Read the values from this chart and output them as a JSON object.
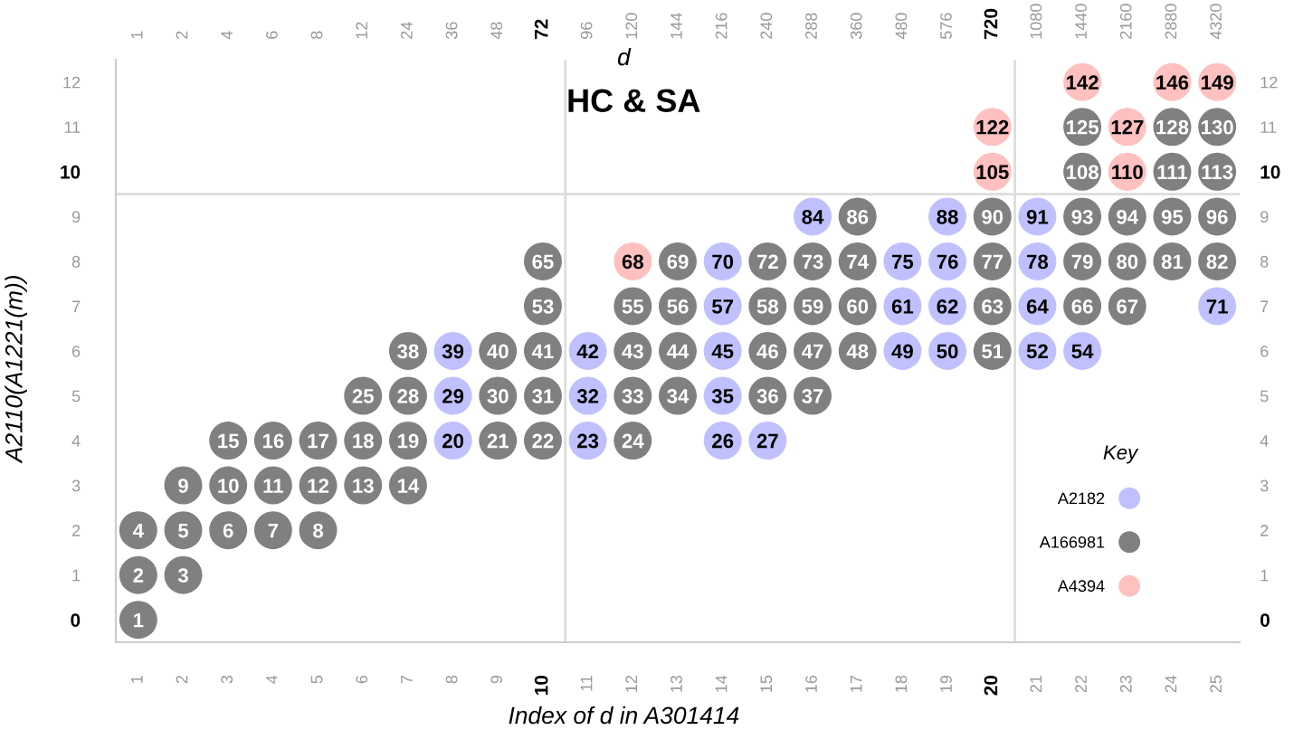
{
  "chart_data": {
    "type": "scatter",
    "title": "HC & SA",
    "xlabel": "Index of d in A301414",
    "x2label": "d",
    "ylabel": "A2110(A1221(m))",
    "legend_title": "Key",
    "legend": "bottom right",
    "marker": "circle",
    "xlim": [
      0.5,
      25.5
    ],
    "xticks": [
      1,
      2,
      3,
      4,
      5,
      6,
      7,
      8,
      9,
      10,
      11,
      12,
      13,
      14,
      15,
      16,
      17,
      18,
      19,
      20,
      21,
      22,
      23,
      24,
      25
    ],
    "ylim": [
      -0.5,
      12.5
    ],
    "yticks": [
      0,
      1,
      2,
      3,
      4,
      5,
      6,
      7,
      8,
      9,
      10,
      11,
      12
    ],
    "y2lim": [
      -0.5,
      12.5
    ],
    "y2ticks": [
      0,
      1,
      2,
      3,
      4,
      5,
      6,
      7,
      8,
      9,
      10,
      11,
      12
    ],
    "ref_lines": [
      {
        "axis": "x",
        "value": 10.5,
        "color": "#dddddd"
      },
      {
        "axis": "x",
        "value": 20.5,
        "color": "#dddddd"
      },
      {
        "axis": "y",
        "value": 9.5,
        "color": "#dddddd"
      }
    ],
    "series": [
      {
        "name": "A2182",
        "color": "#c0c0ff",
        "x": [
          8,
          8,
          8,
          11,
          11,
          11,
          14,
          14,
          14,
          14,
          14,
          15,
          16,
          18,
          18,
          18,
          19,
          19,
          19,
          19,
          21,
          21,
          21,
          21,
          22,
          25
        ],
        "values": [
          4,
          5,
          6,
          4,
          5,
          6,
          4,
          5,
          6,
          7,
          8,
          4,
          9,
          6,
          7,
          8,
          6,
          7,
          8,
          9,
          6,
          7,
          8,
          9,
          6,
          7
        ]
      },
      {
        "name": "A166981",
        "color": "#808080",
        "x": [
          1,
          1,
          2,
          1,
          2,
          3,
          4,
          5,
          2,
          3,
          4,
          5,
          6,
          7,
          3,
          4,
          5,
          6,
          7,
          9,
          10,
          12,
          6,
          7,
          9,
          10,
          12,
          13,
          15,
          16,
          7,
          9,
          10,
          12,
          13,
          15,
          16,
          17,
          20,
          10,
          12,
          13,
          15,
          16,
          17,
          20,
          22,
          23,
          10,
          13,
          15,
          16,
          17,
          20,
          22,
          23,
          24,
          25,
          17,
          20,
          22,
          23,
          24,
          25,
          22,
          24,
          25,
          22,
          24,
          25
        ],
        "values": [
          0,
          1,
          1,
          2,
          2,
          2,
          2,
          2,
          3,
          3,
          3,
          3,
          3,
          3,
          4,
          4,
          4,
          4,
          4,
          4,
          4,
          4,
          5,
          5,
          5,
          5,
          5,
          5,
          5,
          5,
          6,
          6,
          6,
          6,
          6,
          6,
          6,
          6,
          6,
          7,
          7,
          7,
          7,
          7,
          7,
          7,
          7,
          7,
          8,
          8,
          8,
          8,
          8,
          8,
          8,
          8,
          8,
          8,
          9,
          9,
          9,
          9,
          9,
          9,
          10,
          10,
          10,
          11,
          11,
          11
        ]
      },
      {
        "name": "A4394",
        "color": "#ffc0c0",
        "x": [
          12,
          20,
          20,
          23,
          23,
          22,
          24,
          25
        ],
        "values": [
          8,
          10,
          11,
          10,
          11,
          12,
          12,
          12
        ]
      }
    ],
    "annotations": [
      "1",
      "2",
      "4",
      "6",
      "8",
      "12",
      "24",
      "36",
      "48",
      "72",
      "96",
      "120",
      "144",
      "216",
      "240",
      "288",
      "360",
      "480",
      "576",
      "720",
      "1080",
      "1440",
      "2160",
      "2880",
      "4320",
      {
        "text": "20",
        "x": 8,
        "y": 4
      },
      {
        "text": "29",
        "x": 8,
        "y": 5
      },
      {
        "text": "39",
        "x": 8,
        "y": 6
      },
      {
        "text": "23",
        "x": 11,
        "y": 4
      },
      {
        "text": "32",
        "x": 11,
        "y": 5
      },
      {
        "text": "42",
        "x": 11,
        "y": 6
      },
      {
        "text": "26",
        "x": 14,
        "y": 4
      },
      {
        "text": "35",
        "x": 14,
        "y": 5
      },
      {
        "text": "45",
        "x": 14,
        "y": 6
      },
      {
        "text": "57",
        "x": 14,
        "y": 7
      },
      {
        "text": "70",
        "x": 14,
        "y": 8
      },
      {
        "text": "27",
        "x": 15,
        "y": 4
      },
      {
        "text": "84",
        "x": 16,
        "y": 9
      },
      {
        "text": "49",
        "x": 18,
        "y": 6
      },
      {
        "text": "61",
        "x": 18,
        "y": 7
      },
      {
        "text": "75",
        "x": 18,
        "y": 8
      },
      {
        "text": "50",
        "x": 19,
        "y": 6
      },
      {
        "text": "62",
        "x": 19,
        "y": 7
      },
      {
        "text": "76",
        "x": 19,
        "y": 8
      },
      {
        "text": "88",
        "x": 19,
        "y": 9
      },
      {
        "text": "52",
        "x": 21,
        "y": 6
      },
      {
        "text": "64",
        "x": 21,
        "y": 7
      },
      {
        "text": "78",
        "x": 21,
        "y": 8
      },
      {
        "text": "91",
        "x": 21,
        "y": 9
      },
      {
        "text": "54",
        "x": 22,
        "y": 6
      },
      {
        "text": "71",
        "x": 25,
        "y": 7
      },
      {
        "text": "1",
        "x": 1,
        "y": 0
      },
      {
        "text": "2",
        "x": 1,
        "y": 1
      },
      {
        "text": "3",
        "x": 2,
        "y": 1
      },
      {
        "text": "4",
        "x": 1,
        "y": 2
      },
      {
        "text": "5",
        "x": 2,
        "y": 2
      },
      {
        "text": "6",
        "x": 3,
        "y": 2
      },
      {
        "text": "7",
        "x": 4,
        "y": 2
      },
      {
        "text": "8",
        "x": 5,
        "y": 2
      },
      {
        "text": "9",
        "x": 2,
        "y": 3
      },
      {
        "text": "10",
        "x": 3,
        "y": 3
      },
      {
        "text": "11",
        "x": 4,
        "y": 3
      },
      {
        "text": "12",
        "x": 5,
        "y": 3
      },
      {
        "text": "13",
        "x": 6,
        "y": 3
      },
      {
        "text": "14",
        "x": 7,
        "y": 3
      },
      {
        "text": "15",
        "x": 3,
        "y": 4
      },
      {
        "text": "16",
        "x": 4,
        "y": 4
      },
      {
        "text": "17",
        "x": 5,
        "y": 4
      },
      {
        "text": "18",
        "x": 6,
        "y": 4
      },
      {
        "text": "19",
        "x": 7,
        "y": 4
      },
      {
        "text": "21",
        "x": 9,
        "y": 4
      },
      {
        "text": "22",
        "x": 10,
        "y": 4
      },
      {
        "text": "24",
        "x": 12,
        "y": 4
      },
      {
        "text": "25",
        "x": 6,
        "y": 5
      },
      {
        "text": "28",
        "x": 7,
        "y": 5
      },
      {
        "text": "30",
        "x": 9,
        "y": 5
      },
      {
        "text": "31",
        "x": 10,
        "y": 5
      },
      {
        "text": "33",
        "x": 12,
        "y": 5
      },
      {
        "text": "34",
        "x": 13,
        "y": 5
      },
      {
        "text": "36",
        "x": 15,
        "y": 5
      },
      {
        "text": "37",
        "x": 16,
        "y": 5
      },
      {
        "text": "38",
        "x": 7,
        "y": 6
      },
      {
        "text": "40",
        "x": 9,
        "y": 6
      },
      {
        "text": "41",
        "x": 10,
        "y": 6
      },
      {
        "text": "43",
        "x": 12,
        "y": 6
      },
      {
        "text": "44",
        "x": 13,
        "y": 6
      },
      {
        "text": "46",
        "x": 15,
        "y": 6
      },
      {
        "text": "47",
        "x": 16,
        "y": 6
      },
      {
        "text": "48",
        "x": 17,
        "y": 6
      },
      {
        "text": "51",
        "x": 20,
        "y": 6
      },
      {
        "text": "53",
        "x": 10,
        "y": 7
      },
      {
        "text": "55",
        "x": 12,
        "y": 7
      },
      {
        "text": "56",
        "x": 13,
        "y": 7
      },
      {
        "text": "58",
        "x": 15,
        "y": 7
      },
      {
        "text": "59",
        "x": 16,
        "y": 7
      },
      {
        "text": "60",
        "x": 17,
        "y": 7
      },
      {
        "text": "63",
        "x": 20,
        "y": 7
      },
      {
        "text": "66",
        "x": 22,
        "y": 7
      },
      {
        "text": "67",
        "x": 23,
        "y": 7
      },
      {
        "text": "65",
        "x": 10,
        "y": 8
      },
      {
        "text": "69",
        "x": 13,
        "y": 8
      },
      {
        "text": "72",
        "x": 15,
        "y": 8
      },
      {
        "text": "73",
        "x": 16,
        "y": 8
      },
      {
        "text": "74",
        "x": 17,
        "y": 8
      },
      {
        "text": "77",
        "x": 20,
        "y": 8
      },
      {
        "text": "79",
        "x": 22,
        "y": 8
      },
      {
        "text": "80",
        "x": 23,
        "y": 8
      },
      {
        "text": "81",
        "x": 24,
        "y": 8
      },
      {
        "text": "82",
        "x": 25,
        "y": 8
      },
      {
        "text": "86",
        "x": 17,
        "y": 9
      },
      {
        "text": "90",
        "x": 20,
        "y": 9
      },
      {
        "text": "93",
        "x": 22,
        "y": 9
      },
      {
        "text": "94",
        "x": 23,
        "y": 9
      },
      {
        "text": "95",
        "x": 24,
        "y": 9
      },
      {
        "text": "96",
        "x": 25,
        "y": 9
      },
      {
        "text": "108",
        "x": 22,
        "y": 10
      },
      {
        "text": "111",
        "x": 24,
        "y": 10
      },
      {
        "text": "113",
        "x": 25,
        "y": 10
      },
      {
        "text": "125",
        "x": 22,
        "y": 11
      },
      {
        "text": "128",
        "x": 24,
        "y": 11
      },
      {
        "text": "130",
        "x": 25,
        "y": 11
      },
      {
        "text": "68",
        "x": 12,
        "y": 8
      },
      {
        "text": "105",
        "x": 20,
        "y": 10
      },
      {
        "text": "122",
        "x": 20,
        "y": 11
      },
      {
        "text": "110",
        "x": 23,
        "y": 10
      },
      {
        "text": "127",
        "x": 23,
        "y": 11
      },
      {
        "text": "142",
        "x": 22,
        "y": 12
      },
      {
        "text": "146",
        "x": 24,
        "y": 12
      },
      {
        "text": "149",
        "x": 25,
        "y": 12
      }
    ]
  }
}
